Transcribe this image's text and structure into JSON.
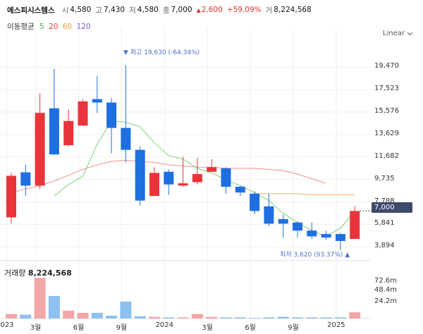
{
  "header": {
    "stock_name": "에스피시스템스",
    "open_label": "시",
    "open": "4,580",
    "high_label": "고",
    "high": "7,430",
    "low_label": "저",
    "low": "4,580",
    "close_label": "종",
    "close": "7,000",
    "change_arrow": "▲",
    "change": "2,600",
    "change_pct": "+59.09%",
    "volume_label": "거",
    "volume": "8,224,568"
  },
  "moving_average": {
    "title": "이동평균",
    "periods": [
      {
        "label": "5",
        "color": "#4caf50"
      },
      {
        "label": "20",
        "color": "#e53935"
      },
      {
        "label": "60",
        "color": "#f0a030"
      },
      {
        "label": "120",
        "color": "#7e57c2"
      }
    ]
  },
  "scale_button": {
    "label": "Linear",
    "icon": "chevron-down-icon"
  },
  "price_tag": "7,000",
  "max_marker": {
    "text": "▼ 최고 19,630 (-64.34%)"
  },
  "min_marker": {
    "text": "최저 3,620 (93.37%) ▲"
  },
  "volume_title": {
    "label": "거래량",
    "value": "8,224,568"
  },
  "colors": {
    "up": "#e8343a",
    "down": "#1e6fe0",
    "ma5": "#7dcf7d",
    "ma20": "#ef8d8d",
    "ma60": "#e8b478",
    "grid": "#efefef"
  },
  "chart_data": {
    "type": "candlestick",
    "interval": "monthly",
    "x_ticks": [
      "023",
      "3월",
      "6월",
      "9월",
      "2024",
      "3월",
      "6월",
      "9월",
      "2025"
    ],
    "y_ticks": [
      "19,470",
      "17,523",
      "15,576",
      "13,629",
      "11,682",
      "9,735",
      "7,788",
      "5,841",
      "3,894"
    ],
    "y_range": [
      3300,
      21500
    ],
    "volume_ticks": [
      "72.6m",
      "48.4m",
      "24.2m"
    ],
    "volume_range": [
      0,
      100
    ],
    "candles": [
      {
        "o": 6450,
        "h": 10300,
        "l": 5900,
        "c": 10050,
        "v": 8
      },
      {
        "o": 10350,
        "h": 11000,
        "l": 8300,
        "c": 9200,
        "v": 7
      },
      {
        "o": 9200,
        "h": 17200,
        "l": 8900,
        "c": 15500,
        "v": 72
      },
      {
        "o": 15900,
        "h": 19300,
        "l": 11900,
        "c": 11900,
        "v": 40
      },
      {
        "o": 12700,
        "h": 15800,
        "l": 12600,
        "c": 14800,
        "v": 14
      },
      {
        "o": 14400,
        "h": 16700,
        "l": 14400,
        "c": 16500,
        "v": 10
      },
      {
        "o": 16700,
        "h": 18700,
        "l": 15500,
        "c": 16400,
        "v": 10
      },
      {
        "o": 16400,
        "h": 16800,
        "l": 12000,
        "c": 14200,
        "v": 5
      },
      {
        "o": 14200,
        "h": 19630,
        "l": 11200,
        "c": 12300,
        "v": 30
      },
      {
        "o": 12300,
        "h": 12600,
        "l": 7500,
        "c": 7900,
        "v": 4
      },
      {
        "o": 8300,
        "h": 10800,
        "l": 8300,
        "c": 10300,
        "v": 3
      },
      {
        "o": 10400,
        "h": 10600,
        "l": 8400,
        "c": 9300,
        "v": 2
      },
      {
        "o": 9200,
        "h": 11700,
        "l": 9100,
        "c": 9400,
        "v": 2
      },
      {
        "o": 9500,
        "h": 11600,
        "l": 9300,
        "c": 10200,
        "v": 8
      },
      {
        "o": 10400,
        "h": 11500,
        "l": 10400,
        "c": 10800,
        "v": 3
      },
      {
        "o": 10700,
        "h": 10800,
        "l": 8500,
        "c": 9100,
        "v": 2
      },
      {
        "o": 9100,
        "h": 9200,
        "l": 8300,
        "c": 8600,
        "v": 2
      },
      {
        "o": 8500,
        "h": 8700,
        "l": 6700,
        "c": 7000,
        "v": 1
      },
      {
        "o": 7400,
        "h": 8500,
        "l": 5700,
        "c": 5900,
        "v": 2
      },
      {
        "o": 6300,
        "h": 6700,
        "l": 4700,
        "c": 5900,
        "v": 3
      },
      {
        "o": 6000,
        "h": 6100,
        "l": 4700,
        "c": 5300,
        "v": 2
      },
      {
        "o": 5300,
        "h": 6000,
        "l": 4600,
        "c": 4800,
        "v": 2
      },
      {
        "o": 5000,
        "h": 5300,
        "l": 4500,
        "c": 4700,
        "v": 2
      },
      {
        "o": 5000,
        "h": 5100,
        "l": 3620,
        "c": 4400,
        "v": 2
      },
      {
        "o": 4580,
        "h": 7430,
        "l": 4580,
        "c": 7000,
        "v": 11
      }
    ],
    "ma5": [
      8300,
      9300,
      10000,
      12800,
      14800,
      14700,
      14300,
      12900,
      11800,
      11500,
      10700,
      10300,
      9700,
      9200,
      8600,
      7900,
      6800,
      6000,
      5300,
      4800,
      5500,
      7000
    ],
    "ma20": [
      8600,
      8900,
      9200,
      9600,
      10100,
      10600,
      11000,
      11300,
      11400,
      11300,
      11200,
      11000,
      10900,
      10800,
      10800,
      10700,
      10700,
      10700,
      10600,
      10500,
      10200,
      9800,
      9400
    ],
    "ma60": [
      8500,
      8500,
      8500,
      8500,
      8400,
      8400,
      8400,
      8400
    ]
  }
}
